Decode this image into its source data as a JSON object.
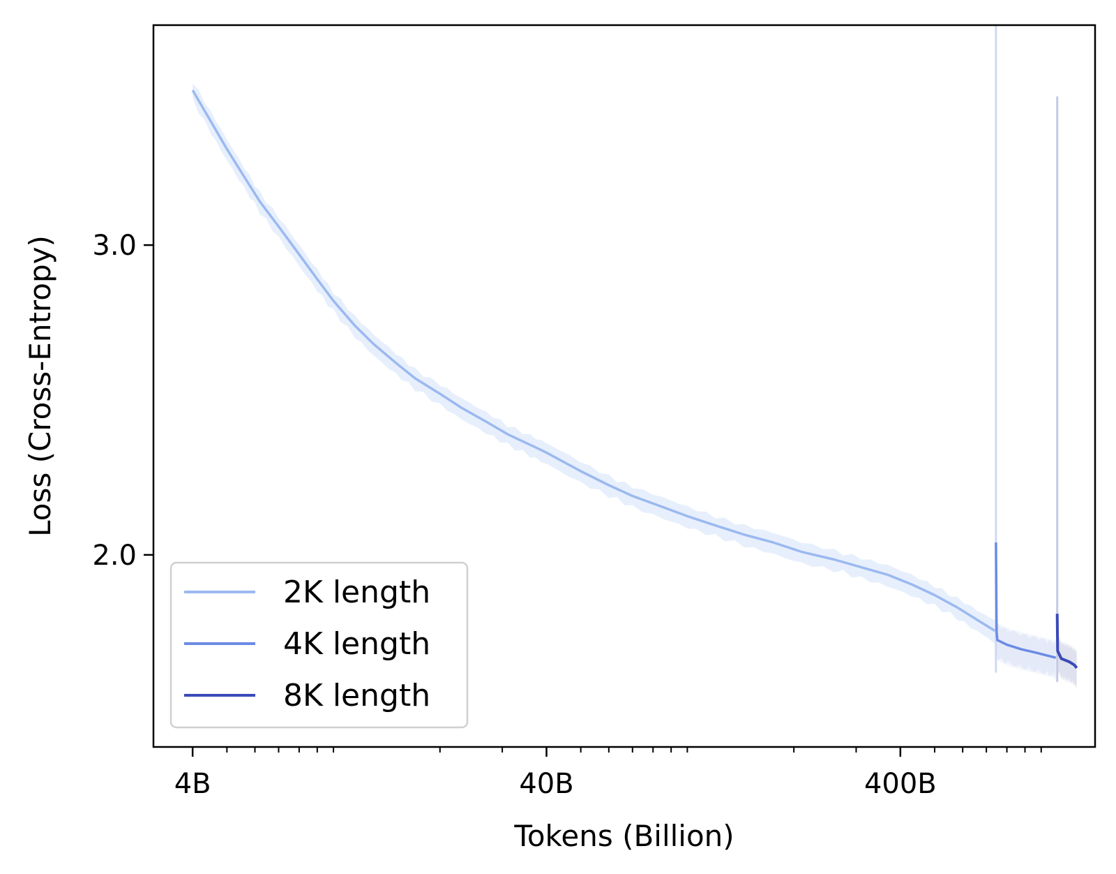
{
  "chart_data": {
    "type": "line",
    "xlabel": "Tokens (Billion)",
    "ylabel": "Loss (Cross-Entropy)",
    "x_scale": "log",
    "xlim": [
      3.1,
      1420
    ],
    "ylim": [
      1.38,
      3.71
    ],
    "x_ticks": [
      {
        "value": 4,
        "label": "4B"
      },
      {
        "value": 40,
        "label": "40B"
      },
      {
        "value": 400,
        "label": "400B"
      }
    ],
    "y_ticks": [
      {
        "value": 2.0,
        "label": "2.0"
      },
      {
        "value": 3.0,
        "label": "3.0"
      }
    ],
    "grid": false,
    "legend_position": "lower-left",
    "series": [
      {
        "name": "2K length",
        "color": "#9bb9f0",
        "band_color": "#e3ecfb",
        "points": [
          [
            4.0,
            3.5
          ],
          [
            4.5,
            3.4
          ],
          [
            5.0,
            3.31
          ],
          [
            5.6,
            3.22
          ],
          [
            6.2,
            3.14
          ],
          [
            7.0,
            3.06
          ],
          [
            8.0,
            2.97
          ],
          [
            9.0,
            2.89
          ],
          [
            10.0,
            2.82
          ],
          [
            11.5,
            2.74
          ],
          [
            13.0,
            2.68
          ],
          [
            15.0,
            2.62
          ],
          [
            17.0,
            2.57
          ],
          [
            20.0,
            2.52
          ],
          [
            23.0,
            2.475
          ],
          [
            27.0,
            2.43
          ],
          [
            31.0,
            2.39
          ],
          [
            36.0,
            2.355
          ],
          [
            40.0,
            2.33
          ],
          [
            50.0,
            2.27
          ],
          [
            60.0,
            2.225
          ],
          [
            70.0,
            2.19
          ],
          [
            85.0,
            2.155
          ],
          [
            100.0,
            2.125
          ],
          [
            120.0,
            2.095
          ],
          [
            145.0,
            2.065
          ],
          [
            175.0,
            2.04
          ],
          [
            210.0,
            2.01
          ],
          [
            260.0,
            1.985
          ],
          [
            310.0,
            1.96
          ],
          [
            370.0,
            1.935
          ],
          [
            430.0,
            1.905
          ],
          [
            500.0,
            1.87
          ],
          [
            580.0,
            1.83
          ],
          [
            660.0,
            1.79
          ],
          [
            740.0,
            1.755
          ]
        ]
      },
      {
        "name": "4K length",
        "color": "#6b8be4",
        "band_color": "#e0e6f8",
        "points": [
          [
            745.0,
            2.04
          ],
          [
            748.0,
            1.75
          ],
          [
            752.0,
            1.725
          ],
          [
            800.0,
            1.71
          ],
          [
            880.0,
            1.695
          ],
          [
            960.0,
            1.685
          ],
          [
            1040.0,
            1.675
          ],
          [
            1100.0,
            1.668
          ]
        ]
      },
      {
        "name": "8K length",
        "color": "#3a4ab8",
        "band_color": "#d9dceb",
        "points": [
          [
            1110.0,
            1.81
          ],
          [
            1113.0,
            1.69
          ],
          [
            1140.0,
            1.665
          ],
          [
            1170.0,
            1.66
          ],
          [
            1200.0,
            1.655
          ],
          [
            1240.0,
            1.645
          ],
          [
            1260.0,
            1.635
          ]
        ]
      }
    ]
  }
}
